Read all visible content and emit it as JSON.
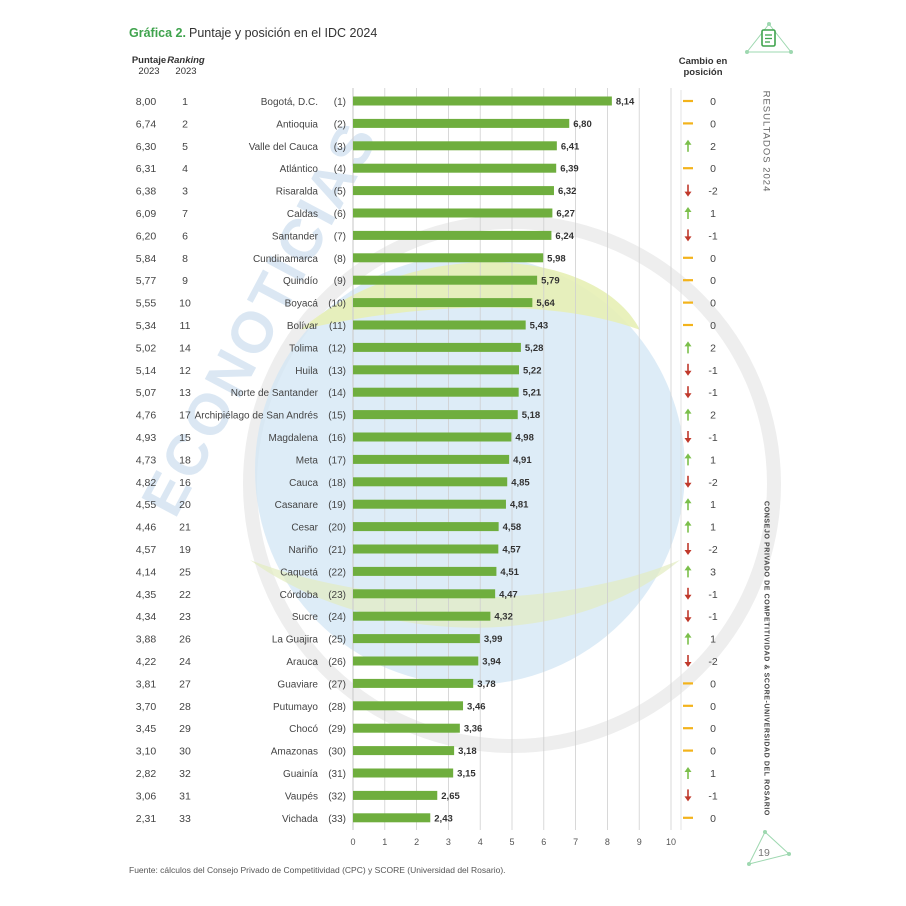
{
  "title": {
    "lead": "Gráfica 2.",
    "rest": "Puntaje y posición en el IDC 2024"
  },
  "headers": {
    "puntaje": "Puntaje",
    "puntaje_year": "2023",
    "ranking": "Ranking",
    "ranking_year": "2023",
    "cambio_line1": "Cambio en",
    "cambio_line2": "posición"
  },
  "watermark_text": "ECONOTICIAS",
  "side_text_top": "RESULTADOS 2024",
  "side_text_right": "CONSEJO PRIVADO DE COMPETITIVIDAD & SCORE-UNIVERSIDAD DEL ROSARIO",
  "page_number": "19",
  "source": "Fuente: cálculos del Consejo Privado de Competitividad (CPC) y SCORE (Universidad del Rosario).",
  "colors": {
    "bar": "#6fae3e",
    "title_accent": "#3fa34d",
    "arrow_up": "#7bbf4b",
    "arrow_down": "#c0392b",
    "dash": "#f3b31b",
    "grid": "#cfcfcf"
  },
  "icons": {
    "corner": "document-icon",
    "corner_bottom": "triangle-icon"
  },
  "chart_data": {
    "type": "bar",
    "orientation": "horizontal",
    "xlim": [
      0,
      10
    ],
    "xticks": [
      "0",
      "1",
      "2",
      "3",
      "4",
      "5",
      "6",
      "7",
      "8",
      "9",
      "10"
    ],
    "grid": true,
    "rows": [
      {
        "puntaje_2023": "8,00",
        "ranking_2023": "1",
        "name": "Bogotá, D.C.",
        "rank": "(1)",
        "value": 8.14,
        "label": "8,14",
        "change": "0",
        "dir": "same"
      },
      {
        "puntaje_2023": "6,74",
        "ranking_2023": "2",
        "name": "Antioquia",
        "rank": "(2)",
        "value": 6.8,
        "label": "6,80",
        "change": "0",
        "dir": "same"
      },
      {
        "puntaje_2023": "6,30",
        "ranking_2023": "5",
        "name": "Valle del Cauca",
        "rank": "(3)",
        "value": 6.41,
        "label": "6,41",
        "change": "2",
        "dir": "up"
      },
      {
        "puntaje_2023": "6,31",
        "ranking_2023": "4",
        "name": "Atlántico",
        "rank": "(4)",
        "value": 6.39,
        "label": "6,39",
        "change": "0",
        "dir": "same"
      },
      {
        "puntaje_2023": "6,38",
        "ranking_2023": "3",
        "name": "Risaralda",
        "rank": "(5)",
        "value": 6.32,
        "label": "6,32",
        "change": "-2",
        "dir": "down"
      },
      {
        "puntaje_2023": "6,09",
        "ranking_2023": "7",
        "name": "Caldas",
        "rank": "(6)",
        "value": 6.27,
        "label": "6,27",
        "change": "1",
        "dir": "up"
      },
      {
        "puntaje_2023": "6,20",
        "ranking_2023": "6",
        "name": "Santander",
        "rank": "(7)",
        "value": 6.24,
        "label": "6,24",
        "change": "-1",
        "dir": "down"
      },
      {
        "puntaje_2023": "5,84",
        "ranking_2023": "8",
        "name": "Cundinamarca",
        "rank": "(8)",
        "value": 5.98,
        "label": "5,98",
        "change": "0",
        "dir": "same"
      },
      {
        "puntaje_2023": "5,77",
        "ranking_2023": "9",
        "name": "Quindío",
        "rank": "(9)",
        "value": 5.79,
        "label": "5,79",
        "change": "0",
        "dir": "same"
      },
      {
        "puntaje_2023": "5,55",
        "ranking_2023": "10",
        "name": "Boyacá",
        "rank": "(10)",
        "value": 5.64,
        "label": "5,64",
        "change": "0",
        "dir": "same"
      },
      {
        "puntaje_2023": "5,34",
        "ranking_2023": "11",
        "name": "Bolívar",
        "rank": "(11)",
        "value": 5.43,
        "label": "5,43",
        "change": "0",
        "dir": "same"
      },
      {
        "puntaje_2023": "5,02",
        "ranking_2023": "14",
        "name": "Tolima",
        "rank": "(12)",
        "value": 5.28,
        "label": "5,28",
        "change": "2",
        "dir": "up"
      },
      {
        "puntaje_2023": "5,14",
        "ranking_2023": "12",
        "name": "Huila",
        "rank": "(13)",
        "value": 5.22,
        "label": "5,22",
        "change": "-1",
        "dir": "down"
      },
      {
        "puntaje_2023": "5,07",
        "ranking_2023": "13",
        "name": "Norte de Santander",
        "rank": "(14)",
        "value": 5.21,
        "label": "5,21",
        "change": "-1",
        "dir": "down"
      },
      {
        "puntaje_2023": "4,76",
        "ranking_2023": "17",
        "name": "Archipiélago de San Andrés",
        "rank": "(15)",
        "value": 5.18,
        "label": "5,18",
        "change": "2",
        "dir": "up"
      },
      {
        "puntaje_2023": "4,93",
        "ranking_2023": "15",
        "name": "Magdalena",
        "rank": "(16)",
        "value": 4.98,
        "label": "4,98",
        "change": "-1",
        "dir": "down"
      },
      {
        "puntaje_2023": "4,73",
        "ranking_2023": "18",
        "name": "Meta",
        "rank": "(17)",
        "value": 4.91,
        "label": "4,91",
        "change": "1",
        "dir": "up"
      },
      {
        "puntaje_2023": "4,82",
        "ranking_2023": "16",
        "name": "Cauca",
        "rank": "(18)",
        "value": 4.85,
        "label": "4,85",
        "change": "-2",
        "dir": "down"
      },
      {
        "puntaje_2023": "4,55",
        "ranking_2023": "20",
        "name": "Casanare",
        "rank": "(19)",
        "value": 4.81,
        "label": "4,81",
        "change": "1",
        "dir": "up"
      },
      {
        "puntaje_2023": "4,46",
        "ranking_2023": "21",
        "name": "Cesar",
        "rank": "(20)",
        "value": 4.58,
        "label": "4,58",
        "change": "1",
        "dir": "up"
      },
      {
        "puntaje_2023": "4,57",
        "ranking_2023": "19",
        "name": "Nariño",
        "rank": "(21)",
        "value": 4.57,
        "label": "4,57",
        "change": "-2",
        "dir": "down"
      },
      {
        "puntaje_2023": "4,14",
        "ranking_2023": "25",
        "name": "Caquetá",
        "rank": "(22)",
        "value": 4.51,
        "label": "4,51",
        "change": "3",
        "dir": "up"
      },
      {
        "puntaje_2023": "4,35",
        "ranking_2023": "22",
        "name": "Córdoba",
        "rank": "(23)",
        "value": 4.47,
        "label": "4,47",
        "change": "-1",
        "dir": "down"
      },
      {
        "puntaje_2023": "4,34",
        "ranking_2023": "23",
        "name": "Sucre",
        "rank": "(24)",
        "value": 4.32,
        "label": "4,32",
        "change": "-1",
        "dir": "down"
      },
      {
        "puntaje_2023": "3,88",
        "ranking_2023": "26",
        "name": "La Guajira",
        "rank": "(25)",
        "value": 3.99,
        "label": "3,99",
        "change": "1",
        "dir": "up"
      },
      {
        "puntaje_2023": "4,22",
        "ranking_2023": "24",
        "name": "Arauca",
        "rank": "(26)",
        "value": 3.94,
        "label": "3,94",
        "change": "-2",
        "dir": "down"
      },
      {
        "puntaje_2023": "3,81",
        "ranking_2023": "27",
        "name": "Guaviare",
        "rank": "(27)",
        "value": 3.78,
        "label": "3,78",
        "change": "0",
        "dir": "same"
      },
      {
        "puntaje_2023": "3,70",
        "ranking_2023": "28",
        "name": "Putumayo",
        "rank": "(28)",
        "value": 3.46,
        "label": "3,46",
        "change": "0",
        "dir": "same"
      },
      {
        "puntaje_2023": "3,45",
        "ranking_2023": "29",
        "name": "Chocó",
        "rank": "(29)",
        "value": 3.36,
        "label": "3,36",
        "change": "0",
        "dir": "same"
      },
      {
        "puntaje_2023": "3,10",
        "ranking_2023": "30",
        "name": "Amazonas",
        "rank": "(30)",
        "value": 3.18,
        "label": "3,18",
        "change": "0",
        "dir": "same"
      },
      {
        "puntaje_2023": "2,82",
        "ranking_2023": "32",
        "name": "Guainía",
        "rank": "(31)",
        "value": 3.15,
        "label": "3,15",
        "change": "1",
        "dir": "up"
      },
      {
        "puntaje_2023": "3,06",
        "ranking_2023": "31",
        "name": "Vaupés",
        "rank": "(32)",
        "value": 2.65,
        "label": "2,65",
        "change": "-1",
        "dir": "down"
      },
      {
        "puntaje_2023": "2,31",
        "ranking_2023": "33",
        "name": "Vichada",
        "rank": "(33)",
        "value": 2.43,
        "label": "2,43",
        "change": "0",
        "dir": "same"
      }
    ]
  }
}
